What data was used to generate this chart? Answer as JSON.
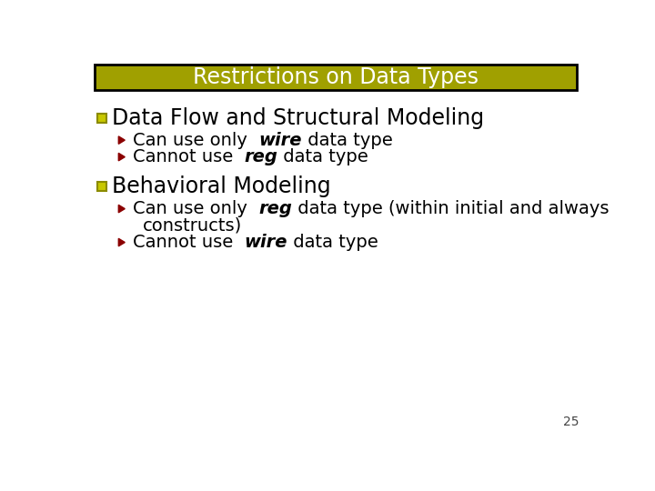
{
  "title": "Restrictions on Data Types",
  "title_bg_color": "#A0A000",
  "title_text_color": "#FFFFFF",
  "title_border_color": "#000000",
  "bg_color": "#FFFFFF",
  "slide_number": "25",
  "bullet1_text": "Data Flow and Structural Modeling",
  "bullet2_text": "Behavioral Modeling",
  "arrow_color": "#8B0000",
  "text_color": "#000000",
  "square_fill": "#C8C800",
  "square_edge": "#8B8B00",
  "sub_text_size": 14,
  "main_text_size": 17,
  "title_font_size": 17
}
